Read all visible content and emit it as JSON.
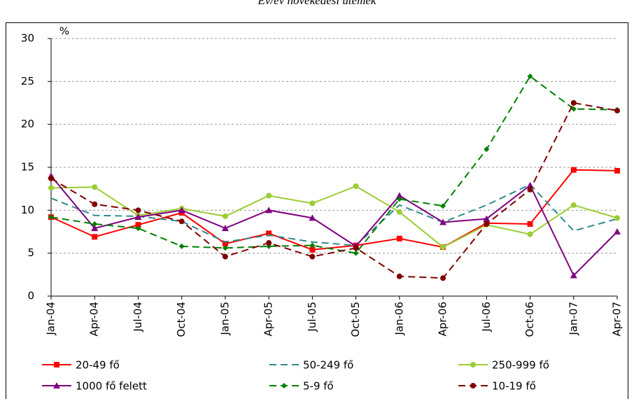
{
  "chart_data": {
    "type": "line",
    "title": "Év/év növekedési ütemek",
    "y_label": "%",
    "categories": [
      "Jan-04",
      "Apr-04",
      "Jul-04",
      "Oct-04",
      "Jan-05",
      "Apr-05",
      "Jul-05",
      "Oct-05",
      "Jan-06",
      "Apr-06",
      "Jul-06",
      "Oct-06",
      "Jan-07",
      "Apr-07"
    ],
    "ylim": [
      0,
      30
    ],
    "yticks": [
      0,
      5,
      10,
      15,
      20,
      25,
      30
    ],
    "grid": true,
    "legend": "bottom",
    "series": [
      {
        "name": "20-49 fő",
        "color": "#ff0000",
        "marker": "square",
        "dashed": false,
        "values": [
          9.2,
          6.9,
          8.3,
          9.7,
          6.1,
          7.3,
          5.4,
          5.9,
          6.7,
          5.7,
          8.5,
          8.4,
          14.7,
          14.6
        ]
      },
      {
        "name": "50-249 fő",
        "color": "#2e8b8b",
        "marker": "none",
        "dashed": true,
        "values": [
          11.4,
          9.4,
          9.3,
          8.7,
          6.3,
          7.1,
          6.3,
          5.9,
          10.6,
          8.6,
          10.6,
          13.0,
          7.6,
          9.0
        ]
      },
      {
        "name": "250-999 fő",
        "color": "#9acd32",
        "marker": "circle",
        "dashed": false,
        "values": [
          12.6,
          12.7,
          9.4,
          10.2,
          9.3,
          11.7,
          10.8,
          12.8,
          9.8,
          5.7,
          8.3,
          7.2,
          10.6,
          9.1
        ]
      },
      {
        "name": "1000 fő felett",
        "color": "#800080",
        "marker": "triangle",
        "dashed": false,
        "values": [
          14.0,
          7.9,
          9.2,
          10.0,
          7.9,
          10.0,
          9.1,
          5.8,
          11.7,
          8.6,
          9.0,
          12.9,
          2.4,
          7.5
        ]
      },
      {
        "name": "5-9 fő",
        "color": "#008000",
        "marker": "diamond",
        "dashed": true,
        "values": [
          9.2,
          8.4,
          7.9,
          5.8,
          5.6,
          5.8,
          5.9,
          5.0,
          11.3,
          10.5,
          17.1,
          25.6,
          21.8,
          21.7
        ]
      },
      {
        "name": "10-19 fő",
        "color": "#800000",
        "marker": "circle",
        "dashed": true,
        "values": [
          13.7,
          10.7,
          10.0,
          8.7,
          4.6,
          6.2,
          4.6,
          5.6,
          2.3,
          2.1,
          8.4,
          12.4,
          22.5,
          21.6
        ]
      }
    ]
  }
}
